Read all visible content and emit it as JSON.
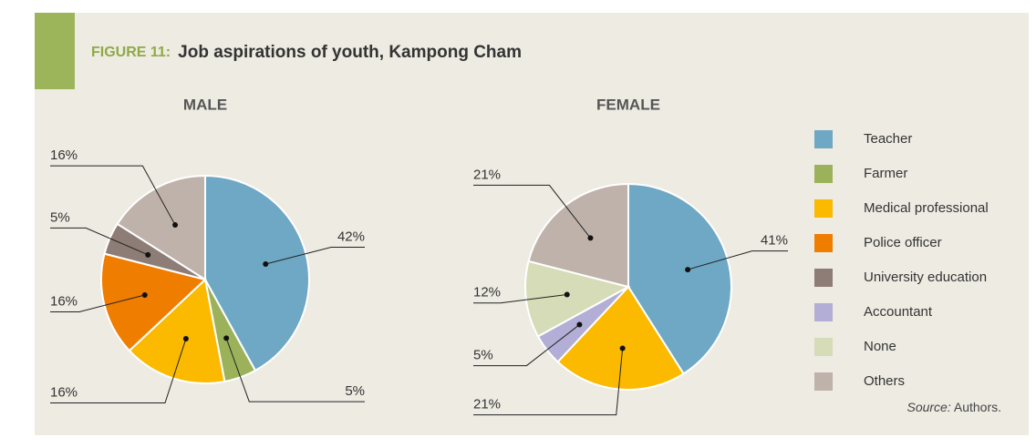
{
  "figure_label": "FIGURE 11:",
  "title": "Job aspirations of youth, Kampong Cham",
  "source": {
    "label": "Source:",
    "text": "Authors."
  },
  "legend": {
    "items": [
      {
        "name": "Teacher",
        "color": "#6fa8c4"
      },
      {
        "name": "Farmer",
        "color": "#9cb25a"
      },
      {
        "name": "Medical professional",
        "color": "#fbb900"
      },
      {
        "name": "Police officer",
        "color": "#ef7d00"
      },
      {
        "name": "University education",
        "color": "#8e7d77"
      },
      {
        "name": "Accountant",
        "color": "#b3aed5"
      },
      {
        "name": "None",
        "color": "#d6dcb7"
      },
      {
        "name": "Others",
        "color": "#bfb2ab"
      }
    ]
  },
  "chart_data": [
    {
      "type": "pie",
      "title": "MALE",
      "categories": [
        "Teacher",
        "Farmer",
        "Medical professional",
        "Police officer",
        "University education",
        "Others"
      ],
      "values": [
        42,
        5,
        16,
        16,
        5,
        16
      ],
      "value_labels": [
        "42%",
        "5%",
        "16%",
        "16%",
        "5%",
        "16%"
      ]
    },
    {
      "type": "pie",
      "title": "FEMALE",
      "categories": [
        "Teacher",
        "Medical professional",
        "Accountant",
        "None",
        "Others"
      ],
      "values": [
        41,
        21,
        5,
        12,
        21
      ],
      "value_labels": [
        "41%",
        "21%",
        "5%",
        "12%",
        "21%"
      ]
    }
  ]
}
